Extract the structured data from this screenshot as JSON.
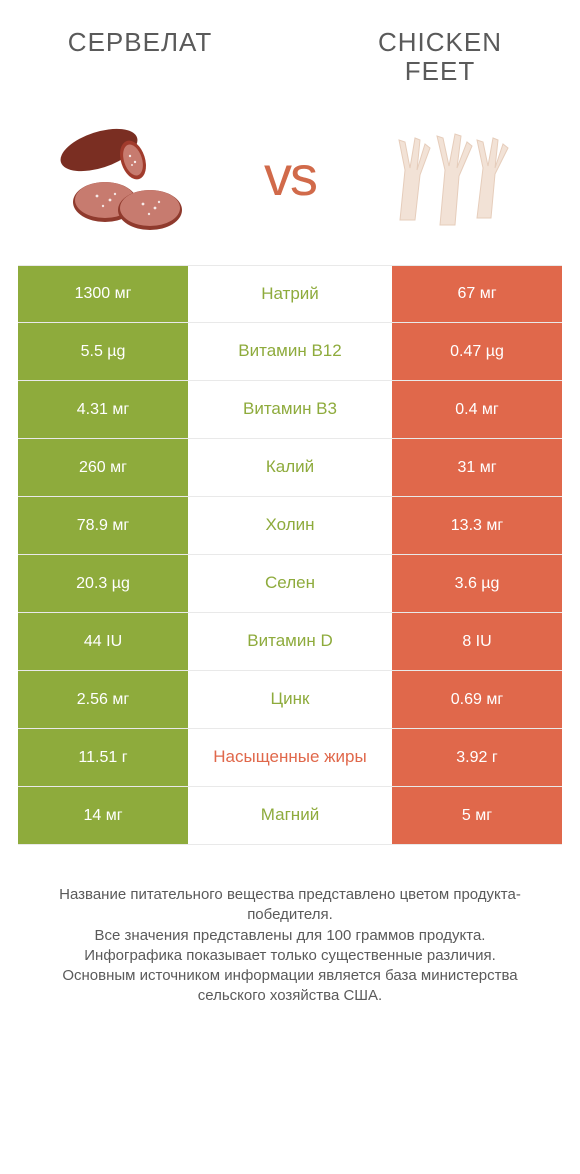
{
  "colors": {
    "left": "#8eab3c",
    "right": "#e0684b",
    "label_left": "#8eab3c",
    "label_right": "#e0684b",
    "bg": "#ffffff",
    "text": "#5a5a5a",
    "divider": "#e9e9e9"
  },
  "header": {
    "left_title": "СЕРВЕЛАТ",
    "right_title": "CHICKEN FEET",
    "vs": "vs"
  },
  "rows": [
    {
      "left": "1300 мг",
      "label": "Натрий",
      "right": "67 мг",
      "winner": "left"
    },
    {
      "left": "5.5 µg",
      "label": "Витамин B12",
      "right": "0.47 µg",
      "winner": "left"
    },
    {
      "left": "4.31 мг",
      "label": "Витамин B3",
      "right": "0.4 мг",
      "winner": "left"
    },
    {
      "left": "260 мг",
      "label": "Калий",
      "right": "31 мг",
      "winner": "left"
    },
    {
      "left": "78.9 мг",
      "label": "Холин",
      "right": "13.3 мг",
      "winner": "left"
    },
    {
      "left": "20.3 µg",
      "label": "Селен",
      "right": "3.6 µg",
      "winner": "left"
    },
    {
      "left": "44 IU",
      "label": "Витамин D",
      "right": "8 IU",
      "winner": "left"
    },
    {
      "left": "2.56 мг",
      "label": "Цинк",
      "right": "0.69 мг",
      "winner": "left"
    },
    {
      "left": "11.51 г",
      "label": "Насыщенные жиры",
      "right": "3.92 г",
      "winner": "right"
    },
    {
      "left": "14 мг",
      "label": "Магний",
      "right": "5 мг",
      "winner": "left"
    }
  ],
  "footnote": "Название питательного вещества представлено цветом продукта-победителя.\nВсе значения представлены для 100 граммов продукта.\nИнфографика показывает только существенные различия.\nОсновным источником информации является база министерства сельского хозяйства США."
}
